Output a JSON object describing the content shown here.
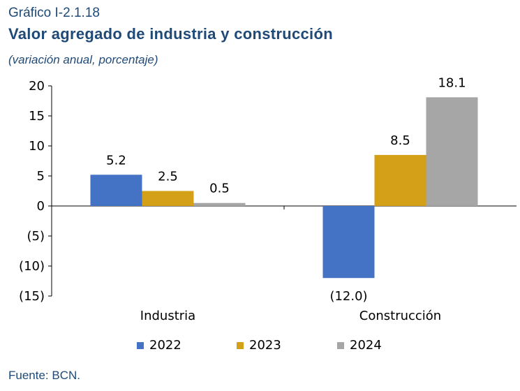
{
  "header": {
    "label": "Gráfico I-2.1.18",
    "title": "Valor agregado de industria y construcción",
    "subtitle": "(variación anual, porcentaje)"
  },
  "source": "Fuente: BCN.",
  "chart_data": {
    "type": "bar",
    "categories": [
      "Industria",
      "Construcción"
    ],
    "series": [
      {
        "name": "2022",
        "values": [
          5.2,
          -12.0
        ],
        "labels": [
          "5.2",
          "(12.0)"
        ],
        "color": "#4472c4"
      },
      {
        "name": "2023",
        "values": [
          2.5,
          8.5
        ],
        "labels": [
          "2.5",
          "8.5"
        ],
        "color": "#d4a017"
      },
      {
        "name": "2024",
        "values": [
          0.5,
          18.1
        ],
        "labels": [
          "0.5",
          "18.1"
        ],
        "color": "#a6a6a6"
      }
    ],
    "ylim": [
      -15,
      20
    ],
    "yticks": [
      20,
      15,
      10,
      5,
      0,
      -5,
      -10,
      -15
    ],
    "ytick_labels": [
      "20",
      "15",
      "10",
      "5",
      "0",
      "(5)",
      "(10)",
      "(15)"
    ],
    "grid": false,
    "legend_position": "bottom"
  }
}
